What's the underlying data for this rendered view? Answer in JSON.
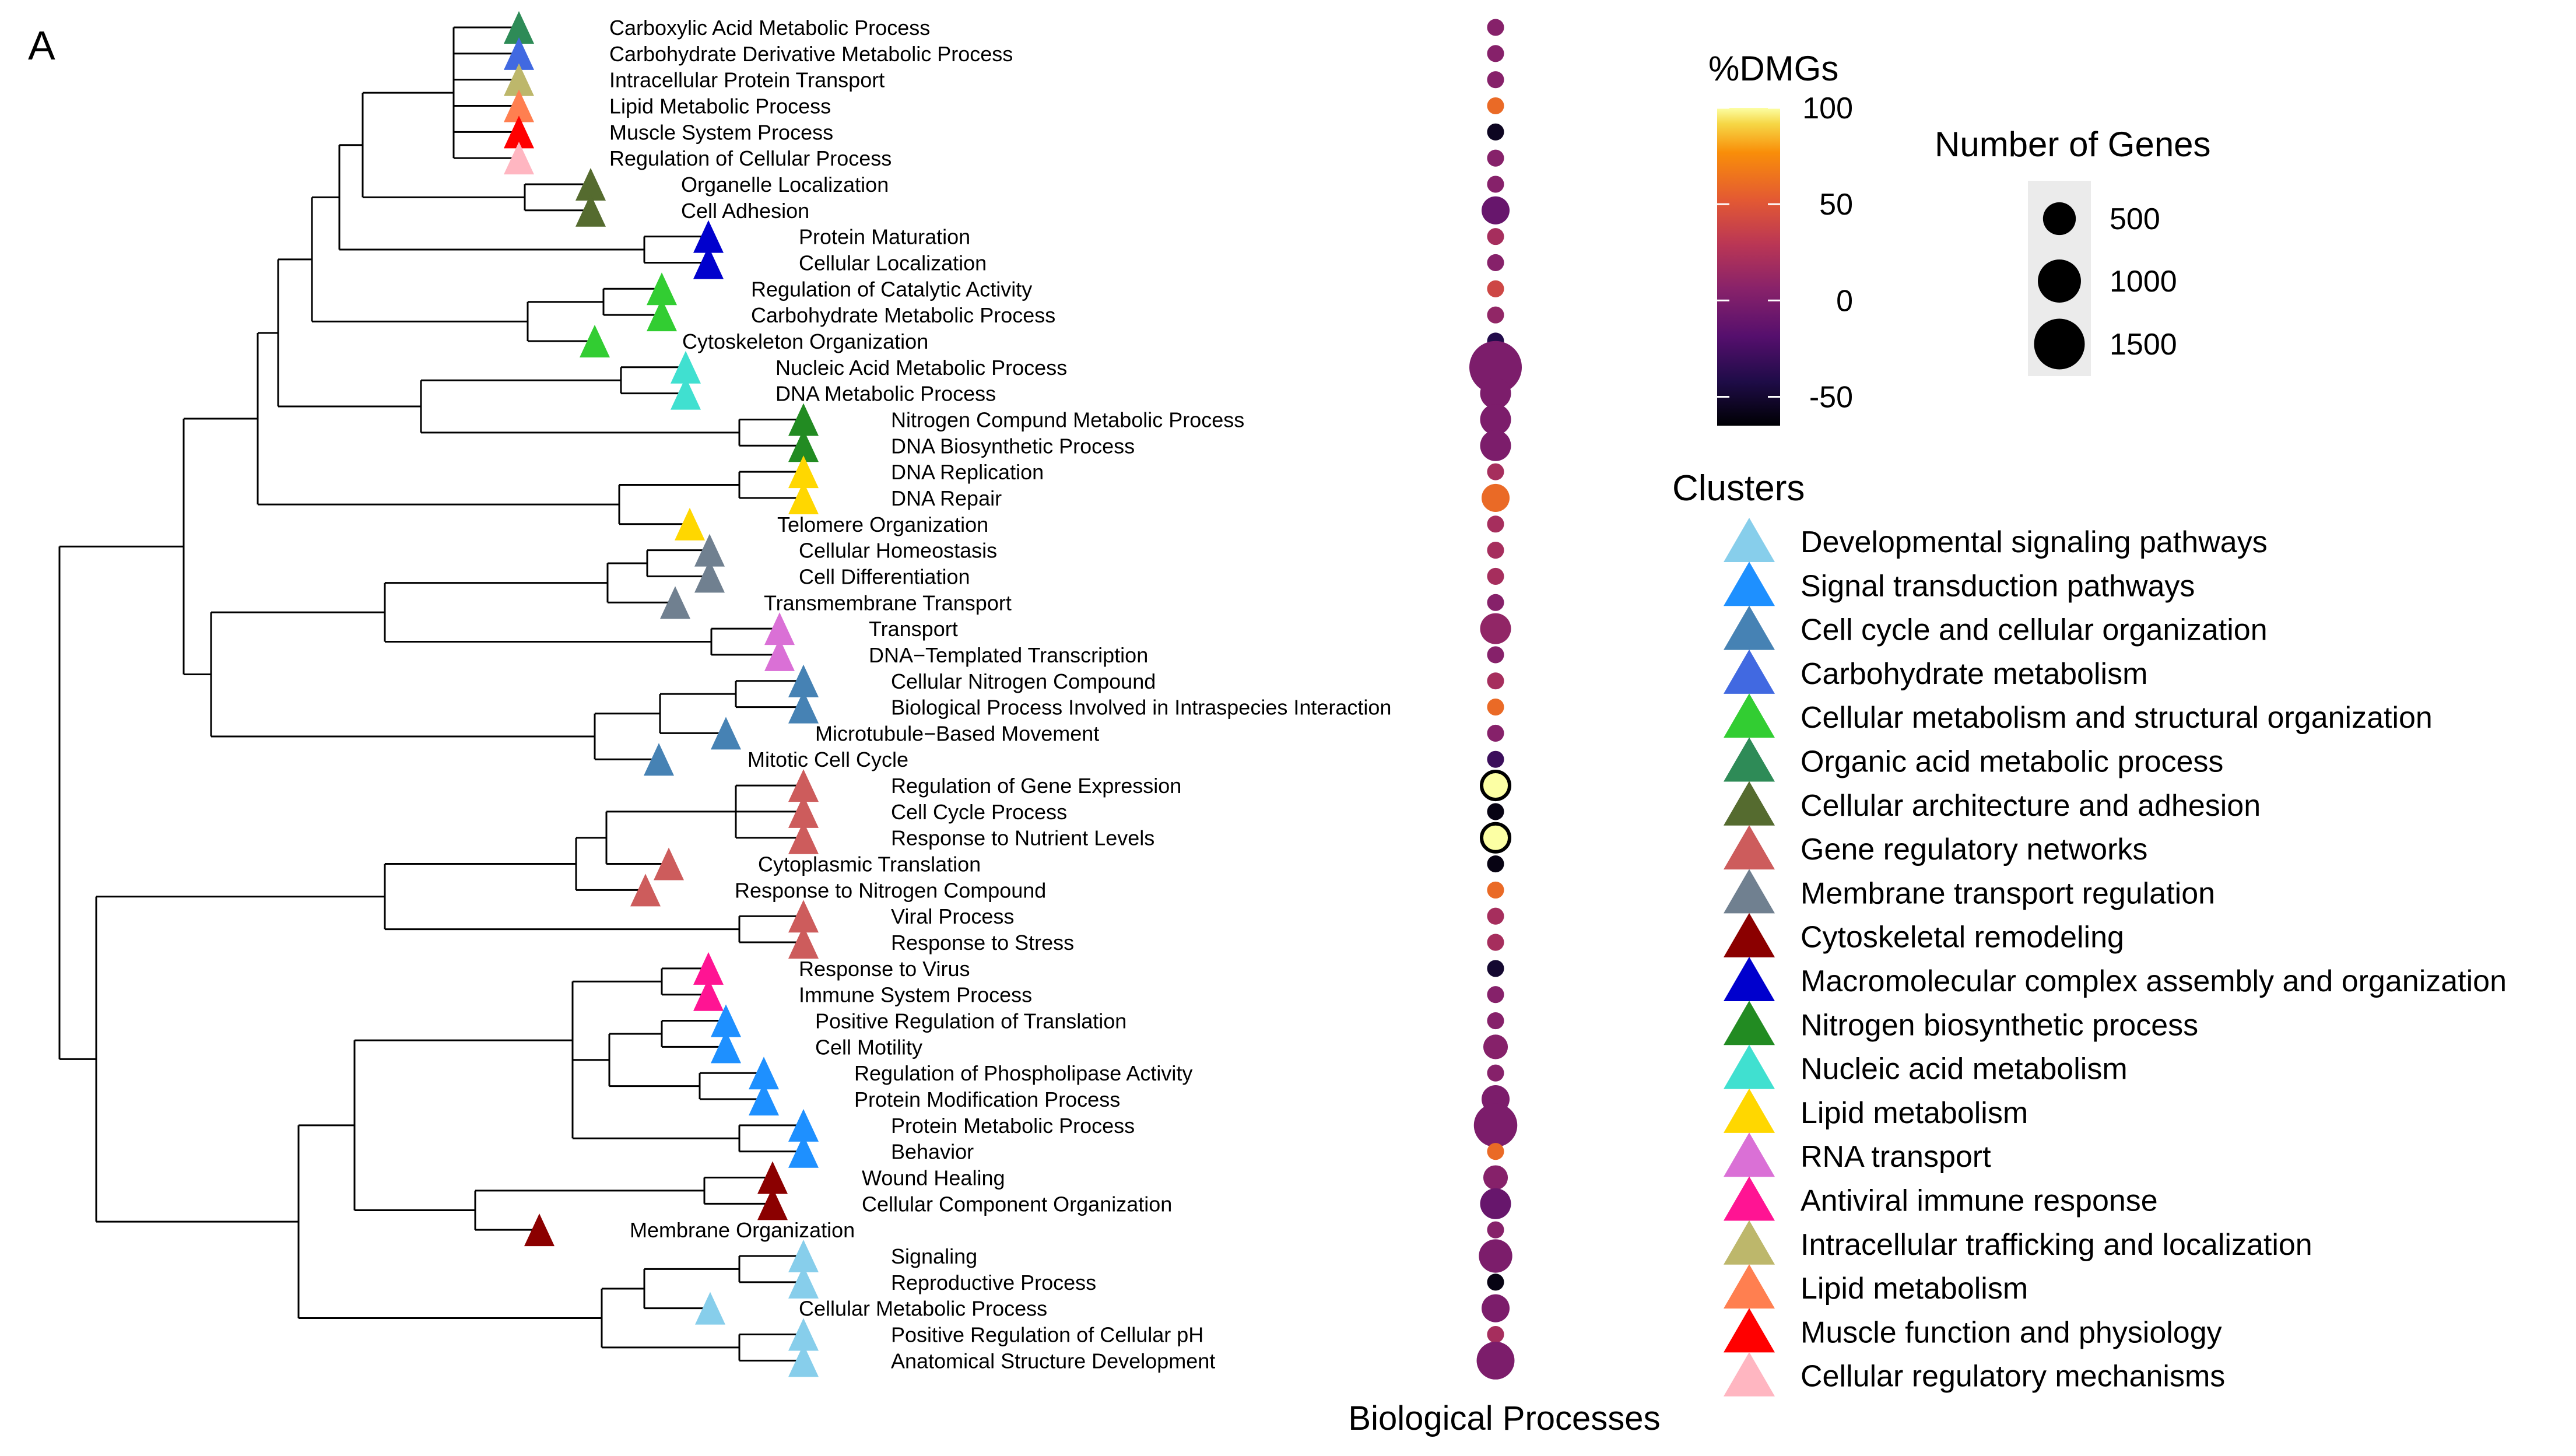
{
  "panel_label": "A",
  "chart_data": {
    "type": "dendrogram-bubble",
    "xlabel": "Biological Processes",
    "colorbar": {
      "title": "%DMGs",
      "ticks": [
        100,
        50,
        0,
        -50
      ],
      "min": -65,
      "max": 100
    },
    "size_legend": {
      "title": "Number of Genes",
      "values": [
        500,
        1000,
        1500
      ]
    },
    "clusters_title": "Clusters",
    "clusters": [
      {
        "name": "Developmental signaling pathways",
        "color": "#87CEEB"
      },
      {
        "name": "Signal transduction pathways",
        "color": "#1E90FF"
      },
      {
        "name": "Cell cycle and cellular organization",
        "color": "#4682B4"
      },
      {
        "name": "Carbohydrate metabolism",
        "color": "#4169E1"
      },
      {
        "name": "Cellular metabolism and structural organization",
        "color": "#32CD32"
      },
      {
        "name": "Organic acid metabolic process",
        "color": "#2E8B57"
      },
      {
        "name": "Cellular architecture and adhesion",
        "color": "#556B2F"
      },
      {
        "name": "Gene regulatory networks",
        "color": "#CD5C5C"
      },
      {
        "name": "Membrane transport regulation",
        "color": "#708090"
      },
      {
        "name": "Cytoskeletal remodeling",
        "color": "#8B0000"
      },
      {
        "name": "Macromolecular complex assembly and organization",
        "color": "#0000CD"
      },
      {
        "name": "Nitrogen biosynthetic process",
        "color": "#228B22"
      },
      {
        "name": "Nucleic acid metabolism",
        "color": "#40E0D0"
      },
      {
        "name": "Lipid metabolism",
        "color": "#FFD700"
      },
      {
        "name": "RNA transport",
        "color": "#DA70D6"
      },
      {
        "name": "Antiviral immune response",
        "color": "#FF1493"
      },
      {
        "name": "Intracellular trafficking and localization",
        "color": "#BDB76B"
      },
      {
        "name": "Lipid metabolism",
        "color": "#FF7F50"
      },
      {
        "name": "Muscle function and physiology",
        "color": "#FF0000"
      },
      {
        "name": "Cellular regulatory mechanisms",
        "color": "#FFB6C1"
      }
    ],
    "processes": [
      {
        "name": "Carboxylic Acid Metabolic Process",
        "cluster": 5,
        "dmg": 5,
        "genes": 150
      },
      {
        "name": "Carbohydrate Derivative Metabolic Process",
        "cluster": 3,
        "dmg": 5,
        "genes": 150
      },
      {
        "name": "Intracellular Protein Transport",
        "cluster": 16,
        "dmg": 5,
        "genes": 150
      },
      {
        "name": "Lipid Metabolic Process",
        "cluster": 17,
        "dmg": 60,
        "genes": 150
      },
      {
        "name": "Muscle System Process",
        "cluster": 18,
        "dmg": -55,
        "genes": 150
      },
      {
        "name": "Regulation of Cellular Process",
        "cluster": 19,
        "dmg": 5,
        "genes": 150
      },
      {
        "name": "Organelle Localization",
        "cluster": 6,
        "dmg": 5,
        "genes": 150
      },
      {
        "name": "Cell Adhesion",
        "cluster": 6,
        "dmg": -10,
        "genes": 400
      },
      {
        "name": "Protein Maturation",
        "cluster": 10,
        "dmg": 20,
        "genes": 150
      },
      {
        "name": "Cellular Localization",
        "cluster": 10,
        "dmg": 5,
        "genes": 150
      },
      {
        "name": "Regulation of Catalytic Activity",
        "cluster": 4,
        "dmg": 40,
        "genes": 150
      },
      {
        "name": "Carbohydrate Metabolic Process",
        "cluster": 4,
        "dmg": 10,
        "genes": 150
      },
      {
        "name": "Cytoskeleton Organization",
        "cluster": 4,
        "dmg": -40,
        "genes": 150
      },
      {
        "name": "Nucleic Acid Metabolic Process",
        "cluster": 12,
        "dmg": 0,
        "genes": 1700
      },
      {
        "name": "DNA Metabolic Process",
        "cluster": 12,
        "dmg": 0,
        "genes": 500
      },
      {
        "name": "Nitrogen Compund Metabolic Process",
        "cluster": 11,
        "dmg": 0,
        "genes": 500
      },
      {
        "name": "DNA Biosynthetic Process",
        "cluster": 11,
        "dmg": 0,
        "genes": 500
      },
      {
        "name": "DNA Replication",
        "cluster": 13,
        "dmg": 20,
        "genes": 150
      },
      {
        "name": "DNA Repair",
        "cluster": 13,
        "dmg": 60,
        "genes": 400
      },
      {
        "name": "Telomere Organization",
        "cluster": 13,
        "dmg": 20,
        "genes": 150
      },
      {
        "name": "Cellular Homeostasis",
        "cluster": 8,
        "dmg": 20,
        "genes": 150
      },
      {
        "name": "Cell Differentiation",
        "cluster": 8,
        "dmg": 20,
        "genes": 150
      },
      {
        "name": "Transmembrane Transport",
        "cluster": 8,
        "dmg": 5,
        "genes": 150
      },
      {
        "name": "Transport",
        "cluster": 14,
        "dmg": 10,
        "genes": 500
      },
      {
        "name": "DNA−Templated Transcription",
        "cluster": 14,
        "dmg": 5,
        "genes": 150
      },
      {
        "name": "Cellular Nitrogen Compound",
        "cluster": 2,
        "dmg": 20,
        "genes": 150
      },
      {
        "name": "Biological Process Involved in Intraspecies Interaction",
        "cluster": 2,
        "dmg": 60,
        "genes": 150
      },
      {
        "name": "Microtubule−Based Movement",
        "cluster": 2,
        "dmg": 5,
        "genes": 150
      },
      {
        "name": "Mitotic Cell Cycle",
        "cluster": 2,
        "dmg": -30,
        "genes": 150
      },
      {
        "name": "Regulation of Gene Expression",
        "cluster": 7,
        "dmg": 100,
        "genes": 400
      },
      {
        "name": "Cell Cycle Process",
        "cluster": 7,
        "dmg": -60,
        "genes": 150
      },
      {
        "name": "Response to Nutrient Levels",
        "cluster": 7,
        "dmg": 100,
        "genes": 400
      },
      {
        "name": "Cytoplasmic Translation",
        "cluster": 7,
        "dmg": -60,
        "genes": 150
      },
      {
        "name": "Response to Nitrogen Compound",
        "cluster": 7,
        "dmg": 60,
        "genes": 150
      },
      {
        "name": "Viral Process",
        "cluster": 7,
        "dmg": 20,
        "genes": 150
      },
      {
        "name": "Response to Stress",
        "cluster": 7,
        "dmg": 20,
        "genes": 150
      },
      {
        "name": "Response to Virus",
        "cluster": 15,
        "dmg": -50,
        "genes": 150
      },
      {
        "name": "Immune System Process",
        "cluster": 15,
        "dmg": 5,
        "genes": 150
      },
      {
        "name": "Positive Regulation of Translation",
        "cluster": 1,
        "dmg": 5,
        "genes": 150
      },
      {
        "name": "Cell Motility",
        "cluster": 1,
        "dmg": 5,
        "genes": 300
      },
      {
        "name": "Regulation of Phospholipase Activity",
        "cluster": 1,
        "dmg": 5,
        "genes": 150
      },
      {
        "name": "Protein Modification Process",
        "cluster": 1,
        "dmg": 0,
        "genes": 400
      },
      {
        "name": "Protein Metabolic Process",
        "cluster": 1,
        "dmg": 0,
        "genes": 1100
      },
      {
        "name": "Behavior",
        "cluster": 1,
        "dmg": 60,
        "genes": 150
      },
      {
        "name": "Wound Healing",
        "cluster": 9,
        "dmg": 5,
        "genes": 300
      },
      {
        "name": "Cellular Component Organization",
        "cluster": 9,
        "dmg": -10,
        "genes": 500
      },
      {
        "name": "Membrane Organization",
        "cluster": 9,
        "dmg": 5,
        "genes": 150
      },
      {
        "name": "Signaling",
        "cluster": 0,
        "dmg": 0,
        "genes": 600
      },
      {
        "name": "Reproductive Process",
        "cluster": 0,
        "dmg": -60,
        "genes": 150
      },
      {
        "name": "Cellular Metabolic Process",
        "cluster": 0,
        "dmg": 0,
        "genes": 400
      },
      {
        "name": "Positive Regulation of Cellular pH",
        "cluster": 0,
        "dmg": 20,
        "genes": 150
      },
      {
        "name": "Anatomical Structure Development",
        "cluster": 0,
        "dmg": 0,
        "genes": 800
      }
    ]
  }
}
